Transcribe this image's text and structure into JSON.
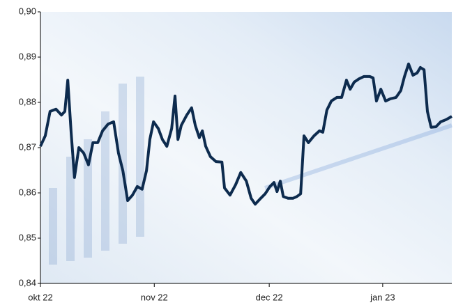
{
  "chart_data": {
    "type": "line",
    "x": [
      0,
      1.3,
      2.6,
      4.2,
      5.7,
      6.6,
      7.4,
      8.3,
      9.2,
      10.4,
      11.7,
      13.0,
      14.2,
      15.5,
      16.8,
      18.3,
      19.8,
      21.1,
      22.3,
      23.6,
      24.9,
      26.2,
      27.5,
      28.7,
      29.6,
      30.6,
      31.9,
      33.0,
      34.2,
      35.5,
      36.4,
      37.2,
      38.1,
      39.6,
      40.9,
      41.9,
      43.0,
      43.8,
      44.7,
      46.0,
      47.5,
      49.1,
      49.8,
      51.3,
      52.8,
      54.2,
      55.7,
      57.0,
      58.1,
      59.6,
      60.8,
      62.1,
      63.2,
      64.0,
      64.9,
      65.7,
      67.0,
      68.3,
      69.4,
      70.4,
      71.3,
      72.5,
      74.0,
      75.5,
      76.4,
      77.5,
      78.7,
      80.2,
      81.5,
      82.8,
      83.8,
      84.9,
      86.2,
      87.5,
      89.1,
      90.0,
      90.9,
      92.1,
      93.4,
      94.7,
      96.2,
      97.5,
      98.5,
      99.6,
      100.8,
      101.9,
      102.8,
      103.8,
      104.7,
      105.7,
      107.0,
      108.3,
      109.8,
      111.3
    ],
    "series": [
      {
        "color": "#0d2b4e",
        "values": [
          0.8703,
          0.8726,
          0.878,
          0.8785,
          0.8772,
          0.878,
          0.8849,
          0.8734,
          0.8634,
          0.87,
          0.8688,
          0.8662,
          0.8711,
          0.8711,
          0.8737,
          0.8752,
          0.8757,
          0.8688,
          0.8649,
          0.8583,
          0.8595,
          0.8614,
          0.8608,
          0.8649,
          0.8718,
          0.8757,
          0.8742,
          0.8718,
          0.8703,
          0.8742,
          0.8814,
          0.8718,
          0.8749,
          0.8772,
          0.8788,
          0.8749,
          0.8722,
          0.8737,
          0.8703,
          0.868,
          0.8669,
          0.8668,
          0.8611,
          0.8595,
          0.8618,
          0.8645,
          0.8626,
          0.8588,
          0.8575,
          0.8588,
          0.8598,
          0.8614,
          0.8623,
          0.8603,
          0.8626,
          0.8592,
          0.8588,
          0.8588,
          0.8592,
          0.8598,
          0.8726,
          0.8711,
          0.8726,
          0.8737,
          0.8734,
          0.8783,
          0.8803,
          0.8811,
          0.8811,
          0.8849,
          0.8829,
          0.8845,
          0.8852,
          0.8857,
          0.8857,
          0.8854,
          0.8803,
          0.8829,
          0.8803,
          0.8808,
          0.8811,
          0.8826,
          0.8857,
          0.8885,
          0.886,
          0.8865,
          0.8877,
          0.8872,
          0.878,
          0.8745,
          0.8746,
          0.8757,
          0.8762,
          0.8769
        ]
      }
    ],
    "xlim": [
      0,
      111.3
    ],
    "xticks": [
      {
        "value": 0,
        "label": "okt 22"
      },
      {
        "value": 30.8,
        "label": "nov 22"
      },
      {
        "value": 61.9,
        "label": "dec 22"
      },
      {
        "value": 92.6,
        "label": "jan 23"
      }
    ],
    "ylim": [
      0.84,
      0.9
    ],
    "yticks": [
      {
        "value": 0.84,
        "label": "0,84"
      },
      {
        "value": 0.85,
        "label": "0,85"
      },
      {
        "value": 0.86,
        "label": "0,86"
      },
      {
        "value": 0.87,
        "label": "0,87"
      },
      {
        "value": 0.88,
        "label": "0,88"
      },
      {
        "value": 0.89,
        "label": "0,89"
      },
      {
        "value": 0.9,
        "label": "0,90"
      }
    ]
  }
}
